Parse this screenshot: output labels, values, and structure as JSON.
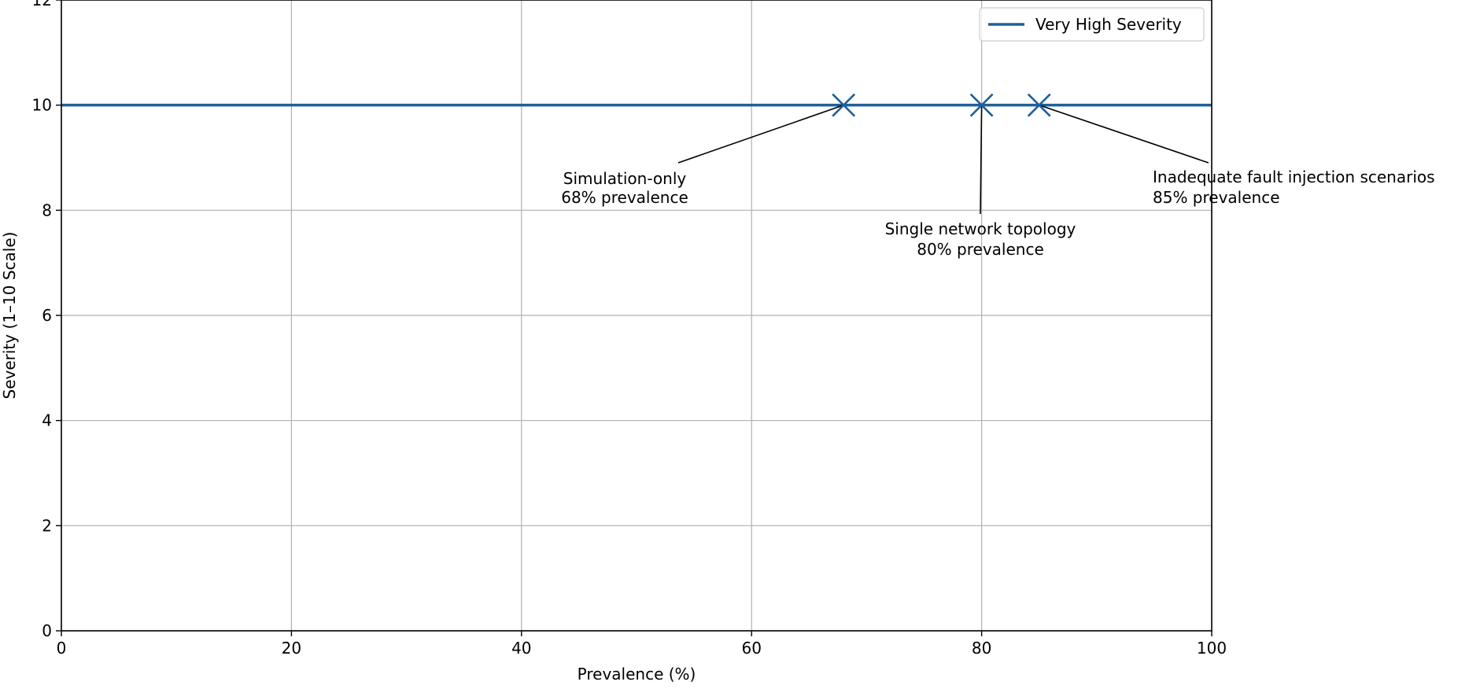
{
  "chart_data": {
    "type": "line",
    "title": "",
    "xlabel": "Prevalence (%)",
    "ylabel": "Severity (1–10 Scale)",
    "xlim": [
      0,
      100
    ],
    "ylim": [
      0,
      12
    ],
    "x_ticks": [
      0,
      20,
      40,
      60,
      80,
      100
    ],
    "y_ticks": [
      0,
      2,
      4,
      6,
      8,
      10,
      12
    ],
    "x_tick_labels": [
      "0",
      "20",
      "40",
      "60",
      "80",
      "100"
    ],
    "y_tick_labels": [
      "0",
      "2",
      "4",
      "6",
      "8",
      "10",
      "12"
    ],
    "grid": true,
    "legend_position": "top-right",
    "series": [
      {
        "name": "Very High Severity",
        "type": "horizontal-line",
        "y": 10,
        "color": "#1f5f9a"
      }
    ],
    "points": [
      {
        "x": 68,
        "y": 10,
        "marker": "x",
        "color": "#1f5f9a",
        "label_line1": "Simulation-only",
        "label_line2": "68% prevalence"
      },
      {
        "x": 80,
        "y": 10,
        "marker": "x",
        "color": "#1f5f9a",
        "label_line1": "Single network topology",
        "label_line2": "80% prevalence"
      },
      {
        "x": 85,
        "y": 10,
        "marker": "x",
        "color": "#1f5f9a",
        "label_line1": "Inadequate fault injection scenarios",
        "label_line2": "85% prevalence"
      }
    ]
  }
}
